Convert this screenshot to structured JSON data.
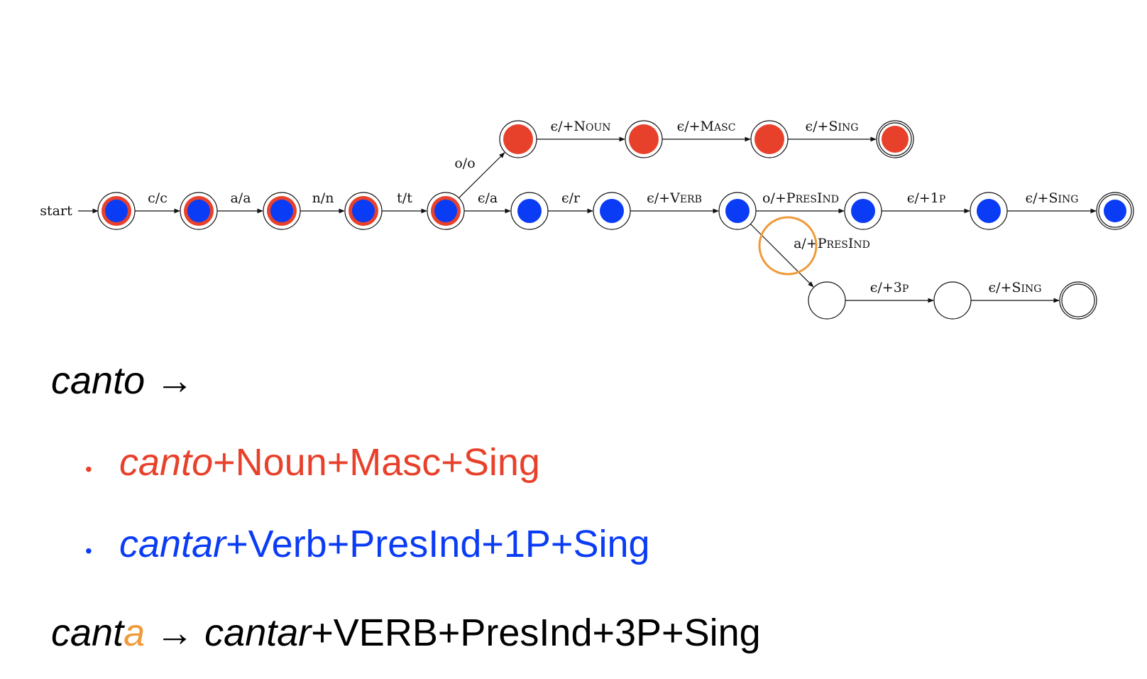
{
  "colors": {
    "red": "#e8412b",
    "blue": "#0b3cf5",
    "orange": "#f09a3a",
    "ink": "#000000"
  },
  "fst": {
    "start_label": "start",
    "states": [
      {
        "id": "q0",
        "fill": "both"
      },
      {
        "id": "q1",
        "fill": "both"
      },
      {
        "id": "q2",
        "fill": "both"
      },
      {
        "id": "q3",
        "fill": "both"
      },
      {
        "id": "q4",
        "fill": "both"
      },
      {
        "id": "n1",
        "fill": "red"
      },
      {
        "id": "n2",
        "fill": "red"
      },
      {
        "id": "n3",
        "fill": "red"
      },
      {
        "id": "n4",
        "fill": "red",
        "final": true
      },
      {
        "id": "v1",
        "fill": "blue"
      },
      {
        "id": "v2",
        "fill": "blue"
      },
      {
        "id": "v3",
        "fill": "blue"
      },
      {
        "id": "v4",
        "fill": "blue"
      },
      {
        "id": "v5",
        "fill": "blue"
      },
      {
        "id": "v6",
        "fill": "blue",
        "final": true
      },
      {
        "id": "w1",
        "fill": "none"
      },
      {
        "id": "w2",
        "fill": "none"
      },
      {
        "id": "w3",
        "fill": "none",
        "final": true
      }
    ],
    "edges": [
      {
        "from": "q0",
        "to": "q1",
        "in": "c",
        "out": "c"
      },
      {
        "from": "q1",
        "to": "q2",
        "in": "a",
        "out": "a"
      },
      {
        "from": "q2",
        "to": "q3",
        "in": "n",
        "out": "n"
      },
      {
        "from": "q3",
        "to": "q4",
        "in": "t",
        "out": "t"
      },
      {
        "from": "q4",
        "to": "n1",
        "in": "o",
        "out": "o"
      },
      {
        "from": "n1",
        "to": "n2",
        "in": "ϵ",
        "out": "+",
        "tag_cap": "N",
        "tag_rest": "OUN"
      },
      {
        "from": "n2",
        "to": "n3",
        "in": "ϵ",
        "out": "+",
        "tag_cap": "M",
        "tag_rest": "ASC"
      },
      {
        "from": "n3",
        "to": "n4",
        "in": "ϵ",
        "out": "+",
        "tag_cap": "S",
        "tag_rest": "ING"
      },
      {
        "from": "q4",
        "to": "v1",
        "in": "ϵ",
        "out": "a"
      },
      {
        "from": "v1",
        "to": "v2",
        "in": "ϵ",
        "out": "r"
      },
      {
        "from": "v2",
        "to": "v3",
        "in": "ϵ",
        "out": "+",
        "tag_cap": "V",
        "tag_rest": "ERB"
      },
      {
        "from": "v3",
        "to": "v4",
        "in": "o",
        "out": "+",
        "tag_cap": "P",
        "tag_rest": "RES",
        "tag_cap2": "I",
        "tag_rest2": "ND"
      },
      {
        "from": "v4",
        "to": "v5",
        "in": "ϵ",
        "out": "+1",
        "tag_cap": "",
        "tag_rest": "P"
      },
      {
        "from": "v5",
        "to": "v6",
        "in": "ϵ",
        "out": "+",
        "tag_cap": "S",
        "tag_rest": "ING"
      },
      {
        "from": "v3",
        "to": "w1",
        "in": "a",
        "out": "+",
        "tag_cap": "P",
        "tag_rest": "RES",
        "tag_cap2": "I",
        "tag_rest2": "ND"
      },
      {
        "from": "w1",
        "to": "w2",
        "in": "ϵ",
        "out": "+3",
        "tag_cap": "",
        "tag_rest": "P"
      },
      {
        "from": "w2",
        "to": "w3",
        "in": "ϵ",
        "out": "+",
        "tag_cap": "S",
        "tag_rest": "ING"
      }
    ]
  },
  "text": {
    "arrow": "→",
    "line1_word": "canto",
    "bullet": "•",
    "b1_stem": "canto",
    "b1_rest": "+Noun+Masc+Sing",
    "b2_stem": "cantar",
    "b2_rest": "+Verb+PresInd+1P+Sing",
    "line4_word": "cant",
    "line4_highlight": "a",
    "line4_stem": "cantar",
    "line4_rest": "+VERB+PresInd+3P+Sing"
  }
}
